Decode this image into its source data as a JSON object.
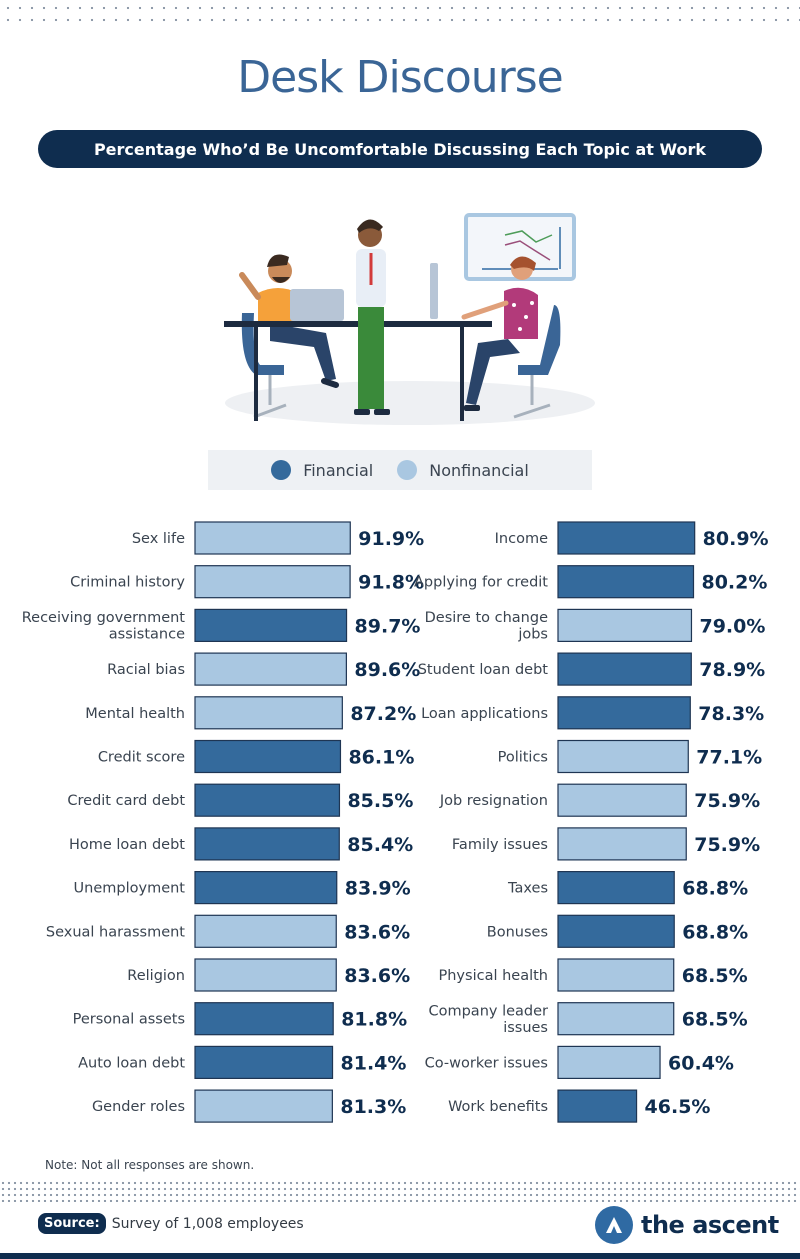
{
  "title": "Desk Discourse",
  "subtitle": "Percentage Who’d Be Uncomfortable Discussing Each Topic at Work",
  "legend": {
    "financial_label": "Financial",
    "nonfinancial_label": "Nonfinancial",
    "financial_color": "#346a9c",
    "nonfinancial_color": "#a9c7e1"
  },
  "note": "Note: Not all responses are shown.",
  "source": {
    "label": "Source:",
    "text": "Survey of 1,008 employees"
  },
  "brand": "the ascent",
  "colors": {
    "dark_navy": "#0f2d4f",
    "title_blue": "#3a6596",
    "bar_outline": "#1e3553"
  },
  "chart_data": {
    "type": "bar",
    "orientation": "horizontal",
    "unit": "%",
    "columns": [
      {
        "items": [
          {
            "label": "Sex life",
            "value": 91.9,
            "category": "nonfinancial"
          },
          {
            "label": "Criminal history",
            "value": 91.8,
            "category": "nonfinancial"
          },
          {
            "label": "Receiving government assistance",
            "value": 89.7,
            "category": "financial"
          },
          {
            "label": "Racial bias",
            "value": 89.6,
            "category": "nonfinancial"
          },
          {
            "label": "Mental health",
            "value": 87.2,
            "category": "nonfinancial"
          },
          {
            "label": "Credit score",
            "value": 86.1,
            "category": "financial"
          },
          {
            "label": "Credit card debt",
            "value": 85.5,
            "category": "financial"
          },
          {
            "label": "Home loan debt",
            "value": 85.4,
            "category": "financial"
          },
          {
            "label": "Unemployment",
            "value": 83.9,
            "category": "financial"
          },
          {
            "label": "Sexual harassment",
            "value": 83.6,
            "category": "nonfinancial"
          },
          {
            "label": "Religion",
            "value": 83.6,
            "category": "nonfinancial"
          },
          {
            "label": "Personal assets",
            "value": 81.8,
            "category": "financial"
          },
          {
            "label": "Auto loan debt",
            "value": 81.4,
            "category": "financial"
          },
          {
            "label": "Gender roles",
            "value": 81.3,
            "category": "nonfinancial"
          }
        ]
      },
      {
        "items": [
          {
            "label": "Income",
            "value": 80.9,
            "category": "financial"
          },
          {
            "label": "Applying for credit",
            "value": 80.2,
            "category": "financial"
          },
          {
            "label": "Desire to change jobs",
            "value": 79.0,
            "category": "nonfinancial"
          },
          {
            "label": "Student loan debt",
            "value": 78.9,
            "category": "financial"
          },
          {
            "label": "Loan applications",
            "value": 78.3,
            "category": "financial"
          },
          {
            "label": "Politics",
            "value": 77.1,
            "category": "nonfinancial"
          },
          {
            "label": "Job resignation",
            "value": 75.9,
            "category": "nonfinancial"
          },
          {
            "label": "Family issues",
            "value": 75.9,
            "category": "nonfinancial"
          },
          {
            "label": "Taxes",
            "value": 68.8,
            "category": "financial"
          },
          {
            "label": "Bonuses",
            "value": 68.8,
            "category": "financial"
          },
          {
            "label": "Physical health",
            "value": 68.5,
            "category": "nonfinancial"
          },
          {
            "label": "Company leader issues",
            "value": 68.5,
            "category": "nonfinancial"
          },
          {
            "label": "Co-worker issues",
            "value": 60.4,
            "category": "nonfinancial"
          },
          {
            "label": "Work benefits",
            "value": 46.5,
            "category": "financial"
          }
        ]
      }
    ]
  }
}
